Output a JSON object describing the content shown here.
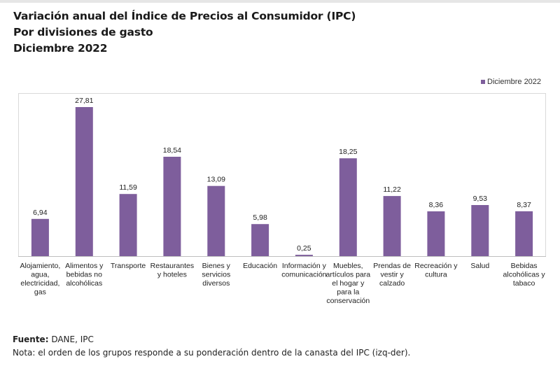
{
  "header": {
    "title_line1": "Variación anual del Índice de Precios al Consumidor (IPC)",
    "title_line2": "Por divisiones de gasto",
    "title_line3": "Diciembre 2022"
  },
  "footer": {
    "source_label": "Fuente:",
    "source_value": " DANE, IPC",
    "note": "Nota: el orden de los grupos responde a su ponderación dentro de la canasta del IPC (izq-der)."
  },
  "colors": {
    "bar": "#7e5e9c",
    "frame": "#d9d9d9",
    "axis": "#bfbfbf",
    "text": "#222222"
  },
  "chart_data": {
    "type": "bar",
    "title": "Variación anual del Índice de Precios al Consumidor (IPC) - Por divisiones de gasto - Diciembre 2022",
    "xlabel": "",
    "ylabel": "",
    "ylim": [
      0,
      30
    ],
    "grid": false,
    "legend_position": "top-right",
    "categories": [
      [
        "Alojamiento,",
        "agua,",
        "electricidad,",
        "gas"
      ],
      [
        "Alimentos y",
        "bebidas no",
        "alcohólicas"
      ],
      [
        "Transporte"
      ],
      [
        "Restaurantes",
        "y hoteles"
      ],
      [
        "Bienes y",
        "servicios",
        "diversos"
      ],
      [
        "Educación"
      ],
      [
        "Información y",
        "comunicación"
      ],
      [
        "Muebles,",
        "artículos para",
        "el hogar y",
        "para la",
        "conservación"
      ],
      [
        "Prendas de",
        "vestir y",
        "calzado"
      ],
      [
        "Recreación y",
        "cultura"
      ],
      [
        "Salud"
      ],
      [
        "Bebidas",
        "alcohólicas y",
        "tabaco"
      ]
    ],
    "series": [
      {
        "name": "Diciembre 2022",
        "values": [
          6.94,
          27.81,
          11.59,
          18.54,
          13.09,
          5.98,
          0.25,
          18.25,
          11.22,
          8.36,
          9.53,
          8.37
        ],
        "labels": [
          "6,94",
          "27,81",
          "11,59",
          "18,54",
          "13,09",
          "5,98",
          "0,25",
          "18,25",
          "11,22",
          "8,36",
          "9,53",
          "8,37"
        ]
      }
    ]
  }
}
